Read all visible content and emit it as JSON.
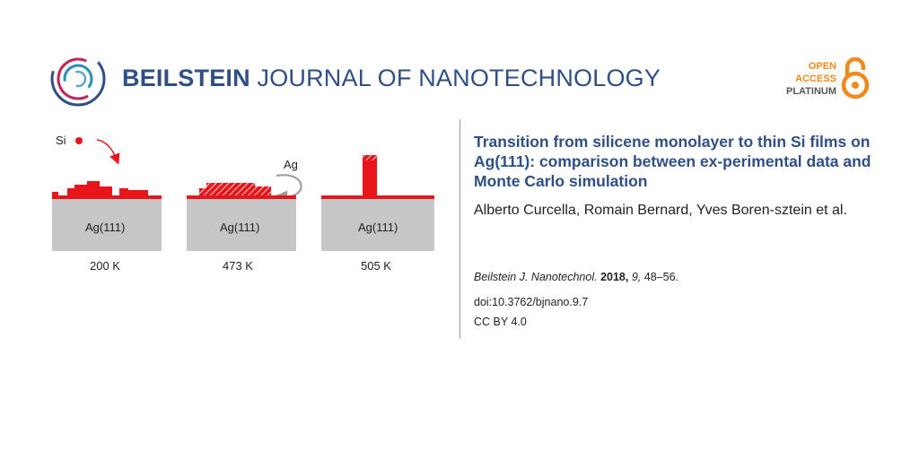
{
  "journal": {
    "name_bold": "BEILSTEIN",
    "name_light": " JOURNAL OF NANOTECHNOLOGY",
    "brand_color": "#2f4f86",
    "logo_icon": "beilstein-rings-logo"
  },
  "open_access": {
    "line1": "OPEN",
    "line2": "ACCESS",
    "line3": "PLATINUM",
    "accent_color": "#f08a1c",
    "icon": "open-lock-icon"
  },
  "graphic": {
    "si_label": "Si",
    "ag_label": "Ag",
    "substrate_label": "Ag(111)",
    "panels": [
      {
        "substrate": "Ag(111)",
        "temperature": "200 K"
      },
      {
        "substrate": "Ag(111)",
        "temperature": "473 K"
      },
      {
        "substrate": "Ag(111)",
        "temperature": "505 K"
      }
    ],
    "si_color": "#e8161a",
    "substrate_color": "#c6c6c6"
  },
  "article": {
    "title": "Transition from silicene monolayer to thin Si films on Ag(111): comparison between ex-perimental data and Monte Carlo simulation",
    "authors": "Alberto Curcella, Romain Bernard, Yves Boren-sztein et al.",
    "citation": {
      "journal_abbrev": "Beilstein J. Nanotechnol.",
      "year": "2018,",
      "volume": "9,",
      "pages": "48–56."
    },
    "doi": "doi:10.3762/bjnano.9.7",
    "license": "CC BY 4.0"
  }
}
